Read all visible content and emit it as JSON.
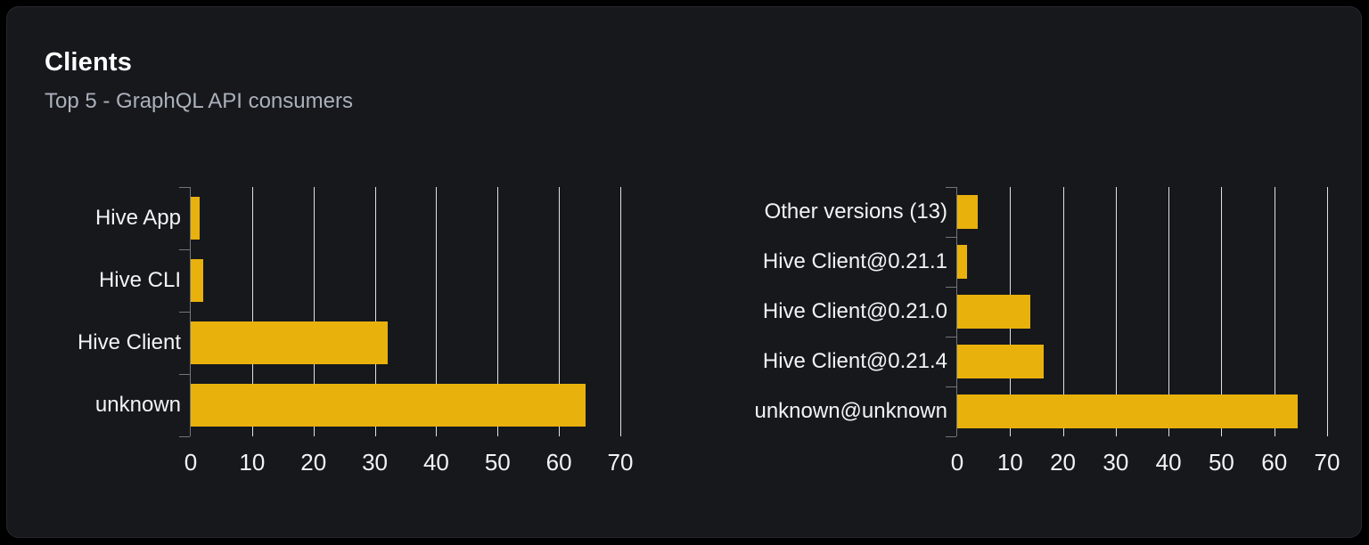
{
  "card": {
    "title": "Clients",
    "subtitle": "Top 5 - GraphQL API consumers"
  },
  "colors": {
    "page_background": "#000000",
    "card_background": "#16181C",
    "card_border": "#26282E",
    "title": "#FFFFFF",
    "subtitle": "#ABB1BB",
    "bar": "#E9B10C",
    "grid_line": "#DCE1EB",
    "axis_line": "#71757D",
    "label_text": "#F2F3F5"
  },
  "chart_data": [
    {
      "type": "bar",
      "orientation": "horizontal",
      "title": "",
      "categories": [
        "Hive App",
        "Hive CLI",
        "Hive Client",
        "unknown"
      ],
      "values": [
        1.4,
        2.1,
        32.1,
        64.4
      ],
      "xlim": [
        0,
        70
      ],
      "x_ticks": [
        0,
        10,
        20,
        30,
        40,
        50,
        60,
        70
      ],
      "grid": true,
      "legend": false
    },
    {
      "type": "bar",
      "orientation": "horizontal",
      "title": "",
      "categories": [
        "Other versions (13)",
        "Hive Client@0.21.1",
        "Hive Client@0.21.0",
        "Hive Client@0.21.4",
        "unknown@unknown"
      ],
      "values": [
        3.9,
        1.8,
        13.8,
        16.4,
        64.5
      ],
      "xlim": [
        0,
        70
      ],
      "x_ticks": [
        0,
        10,
        20,
        30,
        40,
        50,
        60,
        70
      ],
      "grid": true,
      "legend": false
    }
  ]
}
